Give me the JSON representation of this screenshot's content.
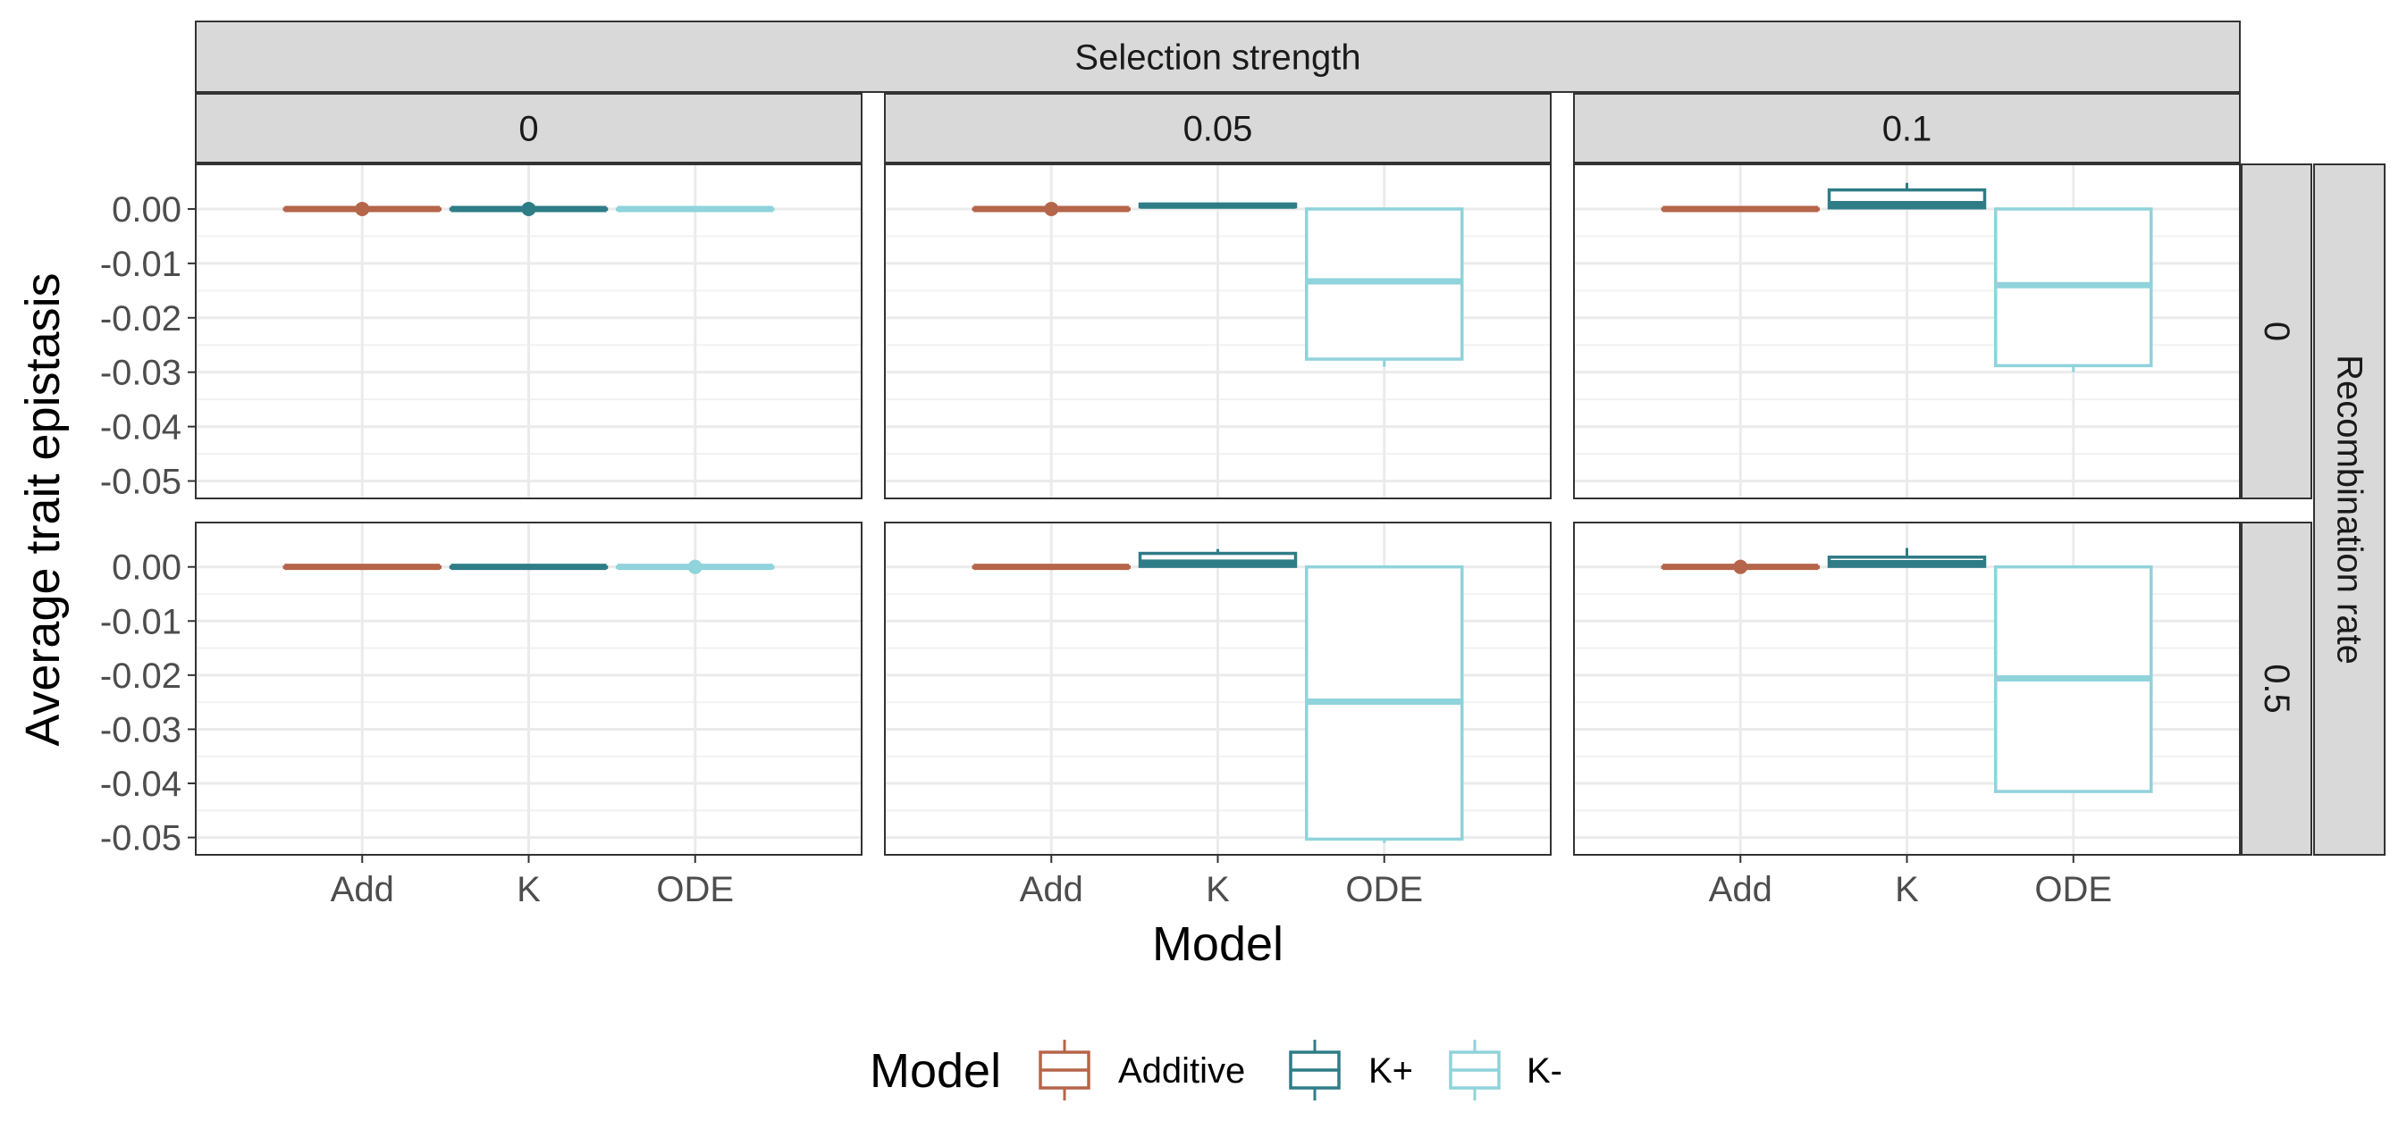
{
  "chart_data": {
    "type": "boxplot",
    "facet_cols": {
      "title": "Selection strength",
      "values": [
        "0",
        "0.05",
        "0.1"
      ]
    },
    "facet_rows": {
      "title": "Recombination rate",
      "values": [
        "0",
        "0.5"
      ]
    },
    "xlabel": "Model",
    "ylabel": "Average trait epistasis",
    "categories": [
      "Add",
      "K",
      "ODE"
    ],
    "ylim": [
      -0.0532,
      0.0082
    ],
    "y_ticks": [
      0.0,
      -0.01,
      -0.02,
      -0.03,
      -0.04,
      -0.05
    ],
    "y_tick_labels": [
      "0.00",
      "-0.01",
      "-0.02",
      "-0.03",
      "-0.04",
      "-0.05"
    ],
    "legend": {
      "title": "Model",
      "position": "bottom",
      "entries": [
        {
          "label": "Additive",
          "color": "#B5654A"
        },
        {
          "label": "K+",
          "color": "#2E7C86"
        },
        {
          "label": "K-",
          "color": "#8FD3DB"
        }
      ]
    },
    "panels": [
      {
        "row": 0,
        "col": 0,
        "boxes": [
          {
            "category": "Add",
            "q1": 0,
            "median": 0,
            "q3": 0,
            "whisker_low": 0,
            "whisker_high": 0,
            "outliers": [
              0
            ]
          },
          {
            "category": "K",
            "q1": 0,
            "median": 0,
            "q3": 0,
            "whisker_low": 0,
            "whisker_high": 0,
            "outliers": [
              0
            ]
          },
          {
            "category": "ODE",
            "q1": 0,
            "median": 0,
            "q3": 0,
            "whisker_low": 0,
            "whisker_high": 0,
            "outliers": []
          }
        ]
      },
      {
        "row": 0,
        "col": 1,
        "boxes": [
          {
            "category": "Add",
            "q1": 0,
            "median": 0,
            "q3": 0,
            "whisker_low": 0,
            "whisker_high": 0,
            "outliers": [
              0
            ]
          },
          {
            "category": "K",
            "q1": 0.0004,
            "median": 0.0006,
            "q3": 0.0009,
            "whisker_low": 0.0004,
            "whisker_high": 0.0009,
            "outliers": []
          },
          {
            "category": "ODE",
            "q1": -0.0276,
            "median": -0.0133,
            "q3": 0,
            "whisker_low": -0.029,
            "whisker_high": 0,
            "outliers": []
          }
        ]
      },
      {
        "row": 0,
        "col": 2,
        "boxes": [
          {
            "category": "Add",
            "q1": 0,
            "median": 0,
            "q3": 0,
            "whisker_low": 0,
            "whisker_high": 0,
            "outliers": []
          },
          {
            "category": "K",
            "q1": 0.0002,
            "median": 0.0009,
            "q3": 0.0035,
            "whisker_low": 0.0002,
            "whisker_high": 0.0048,
            "outliers": []
          },
          {
            "category": "ODE",
            "q1": -0.0288,
            "median": -0.014,
            "q3": 0,
            "whisker_low": -0.03,
            "whisker_high": 0,
            "outliers": []
          }
        ]
      },
      {
        "row": 1,
        "col": 0,
        "boxes": [
          {
            "category": "Add",
            "q1": 0,
            "median": 0,
            "q3": 0,
            "whisker_low": 0,
            "whisker_high": 0,
            "outliers": []
          },
          {
            "category": "K",
            "q1": 0,
            "median": 0,
            "q3": 0,
            "whisker_low": 0,
            "whisker_high": 0,
            "outliers": []
          },
          {
            "category": "ODE",
            "q1": 0,
            "median": 0,
            "q3": 0,
            "whisker_low": 0,
            "whisker_high": 0,
            "outliers": [
              0
            ]
          }
        ]
      },
      {
        "row": 1,
        "col": 1,
        "boxes": [
          {
            "category": "Add",
            "q1": 0,
            "median": 0,
            "q3": 0,
            "whisker_low": 0,
            "whisker_high": 0,
            "outliers": []
          },
          {
            "category": "K",
            "q1": 0.0001,
            "median": 0.0008,
            "q3": 0.0025,
            "whisker_low": 0.0001,
            "whisker_high": 0.0033,
            "outliers": []
          },
          {
            "category": "ODE",
            "q1": -0.0503,
            "median": -0.0249,
            "q3": 0,
            "whisker_low": -0.051,
            "whisker_high": 0,
            "outliers": []
          }
        ]
      },
      {
        "row": 1,
        "col": 2,
        "boxes": [
          {
            "category": "Add",
            "q1": 0,
            "median": 0,
            "q3": 0,
            "whisker_low": 0,
            "whisker_high": 0,
            "outliers": [
              0
            ]
          },
          {
            "category": "K",
            "q1": 0.0001,
            "median": 0.0007,
            "q3": 0.0018,
            "whisker_low": 0.0001,
            "whisker_high": 0.0035,
            "outliers": []
          },
          {
            "category": "ODE",
            "q1": -0.0415,
            "median": -0.0206,
            "q3": 0,
            "whisker_low": -0.0415,
            "whisker_high": 0,
            "outliers": []
          }
        ]
      }
    ]
  }
}
